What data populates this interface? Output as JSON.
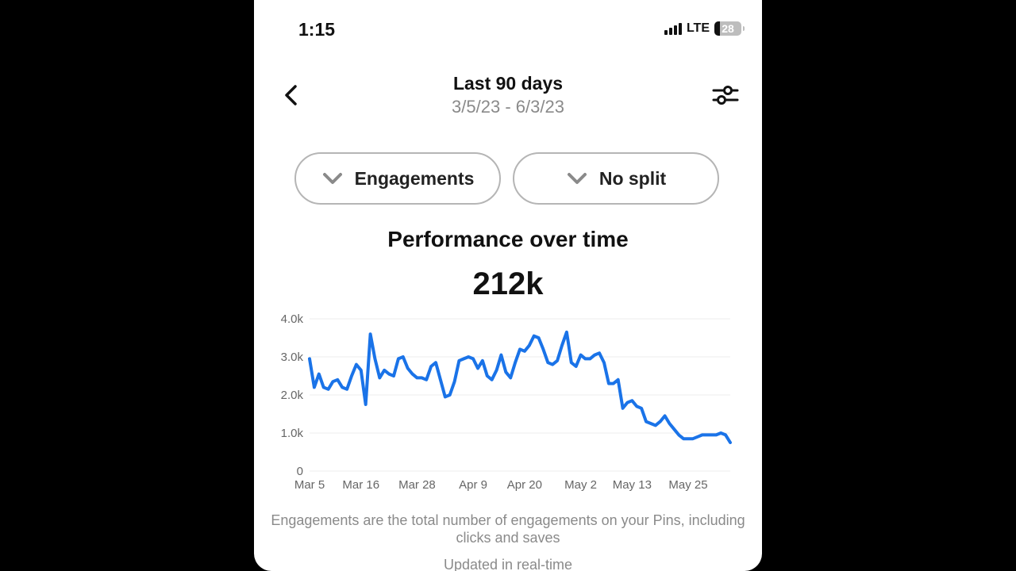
{
  "status_bar": {
    "time": "1:15",
    "network": "LTE",
    "battery": "28"
  },
  "header": {
    "title": "Last 90 days",
    "date_range": "3/5/23 - 6/3/23"
  },
  "filters": {
    "metric": "Engagements",
    "split": "No split"
  },
  "performance": {
    "title": "Performance over time",
    "total": "212k"
  },
  "chart_data": {
    "type": "line",
    "y_ticks": [
      "4.0k",
      "3.0k",
      "2.0k",
      "1.0k",
      "0"
    ],
    "ylim": [
      0,
      4000
    ],
    "x_ticks": [
      "Mar 5",
      "Mar 16",
      "Mar 28",
      "Apr 9",
      "Apr 20",
      "May 2",
      "May 13",
      "May 25"
    ],
    "x_tick_days": [
      0,
      11,
      23,
      35,
      46,
      58,
      69,
      81
    ],
    "day_count": 91,
    "grid": true,
    "color": "#1a73e8",
    "series": [
      {
        "values": [
          2950,
          2200,
          2550,
          2200,
          2150,
          2350,
          2400,
          2200,
          2150,
          2500,
          2800,
          2650,
          1750,
          3600,
          2950,
          2450,
          2650,
          2550,
          2500,
          2950,
          3000,
          2700,
          2550,
          2450,
          2450,
          2400,
          2750,
          2850,
          2400,
          1950,
          2000,
          2350,
          2900,
          2950,
          3000,
          2950,
          2700,
          2900,
          2500,
          2400,
          2650,
          3050,
          2600,
          2450,
          2850,
          3200,
          3150,
          3300,
          3550,
          3500,
          3200,
          2850,
          2800,
          2900,
          3300,
          3650,
          2850,
          2750,
          3050,
          2950,
          2950,
          3050,
          3100,
          2850,
          2300,
          2300,
          2400,
          1650,
          1800,
          1850,
          1700,
          1650,
          1300,
          1250,
          1200,
          1300,
          1450,
          1250,
          1100,
          950,
          850,
          850,
          850,
          900,
          950,
          950,
          950,
          950,
          1000,
          950,
          750
        ]
      }
    ]
  },
  "caption": "Engagements are the total number of engagements on your Pins, including clicks and saves",
  "updated": "Updated in real-time"
}
